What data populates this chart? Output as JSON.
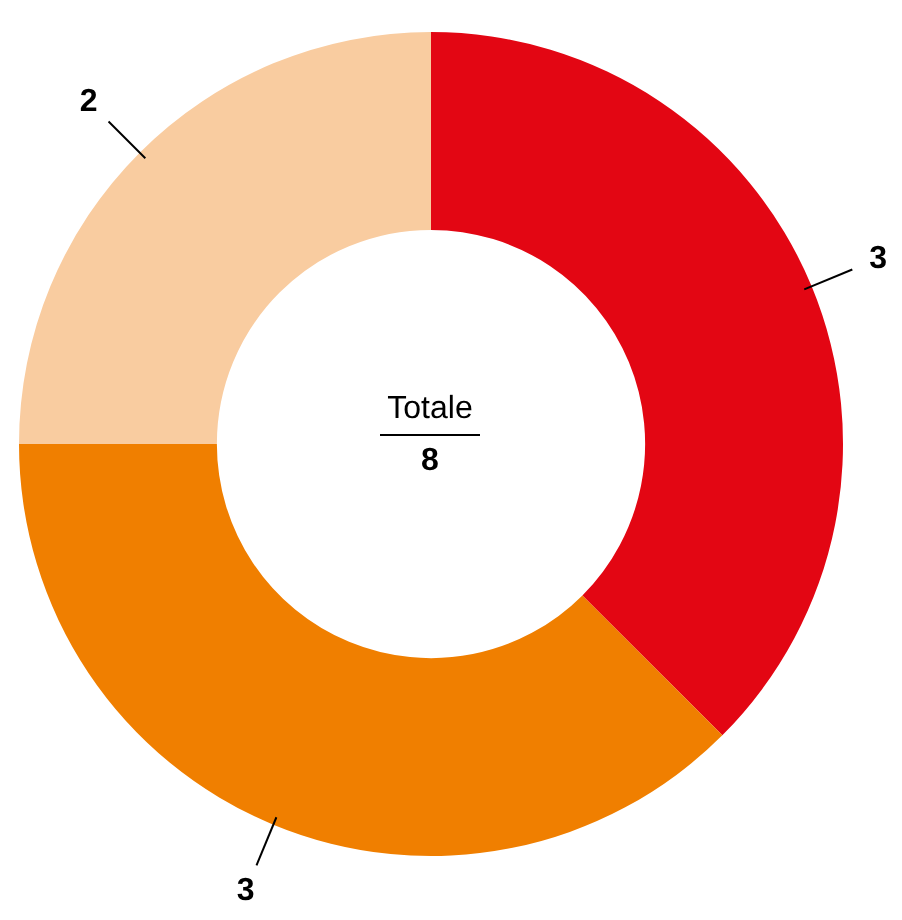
{
  "chart_data": {
    "type": "donut",
    "categories": [
      null,
      null,
      null
    ],
    "values": [
      3,
      3,
      2
    ],
    "colors": [
      "#e30613",
      "#f07f00",
      "#f9cca0"
    ],
    "data_labels": true,
    "annotations": [
      "Totale",
      "8"
    ]
  }
}
